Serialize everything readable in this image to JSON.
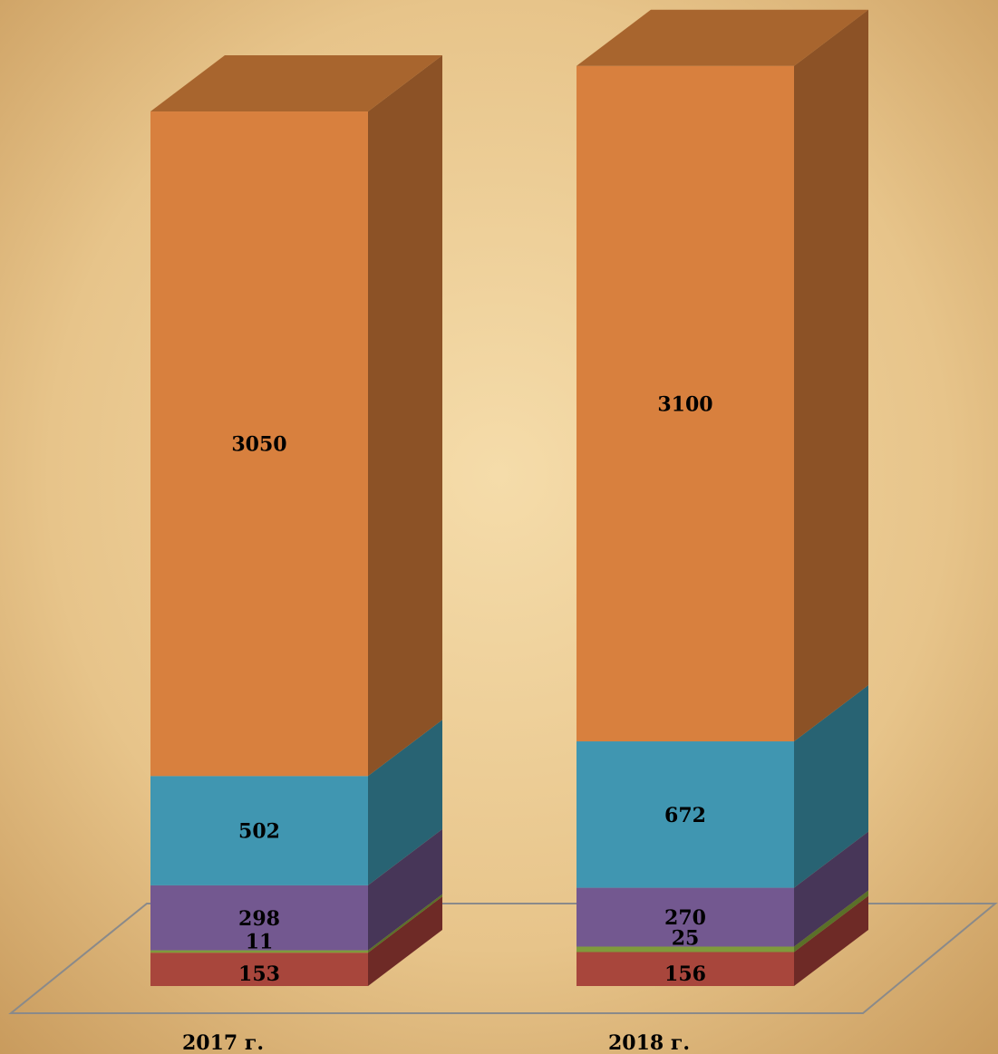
{
  "chart_data": {
    "type": "bar",
    "stacked": true,
    "three_d": true,
    "title": "",
    "xlabel": "",
    "ylabel": "",
    "grid": false,
    "legend": "none",
    "categories": [
      "2017 г.",
      "2018 г."
    ],
    "series": [
      {
        "values": [
          153,
          156
        ],
        "color": "#a8463c",
        "side_color": "#6e2a26"
      },
      {
        "values": [
          11,
          25
        ],
        "color": "#7f9a3c",
        "side_color": "#5a7028"
      },
      {
        "values": [
          298,
          270
        ],
        "color": "#735890",
        "side_color": "#473658"
      },
      {
        "values": [
          502,
          672
        ],
        "color": "#4096b1",
        "side_color": "#286373"
      },
      {
        "values": [
          3050,
          3100
        ],
        "color": "#d8803e",
        "side_color": "#8c5226"
      }
    ],
    "top_color": "#a8652e",
    "label_order": [
      4,
      3,
      2,
      1,
      0
    ]
  }
}
